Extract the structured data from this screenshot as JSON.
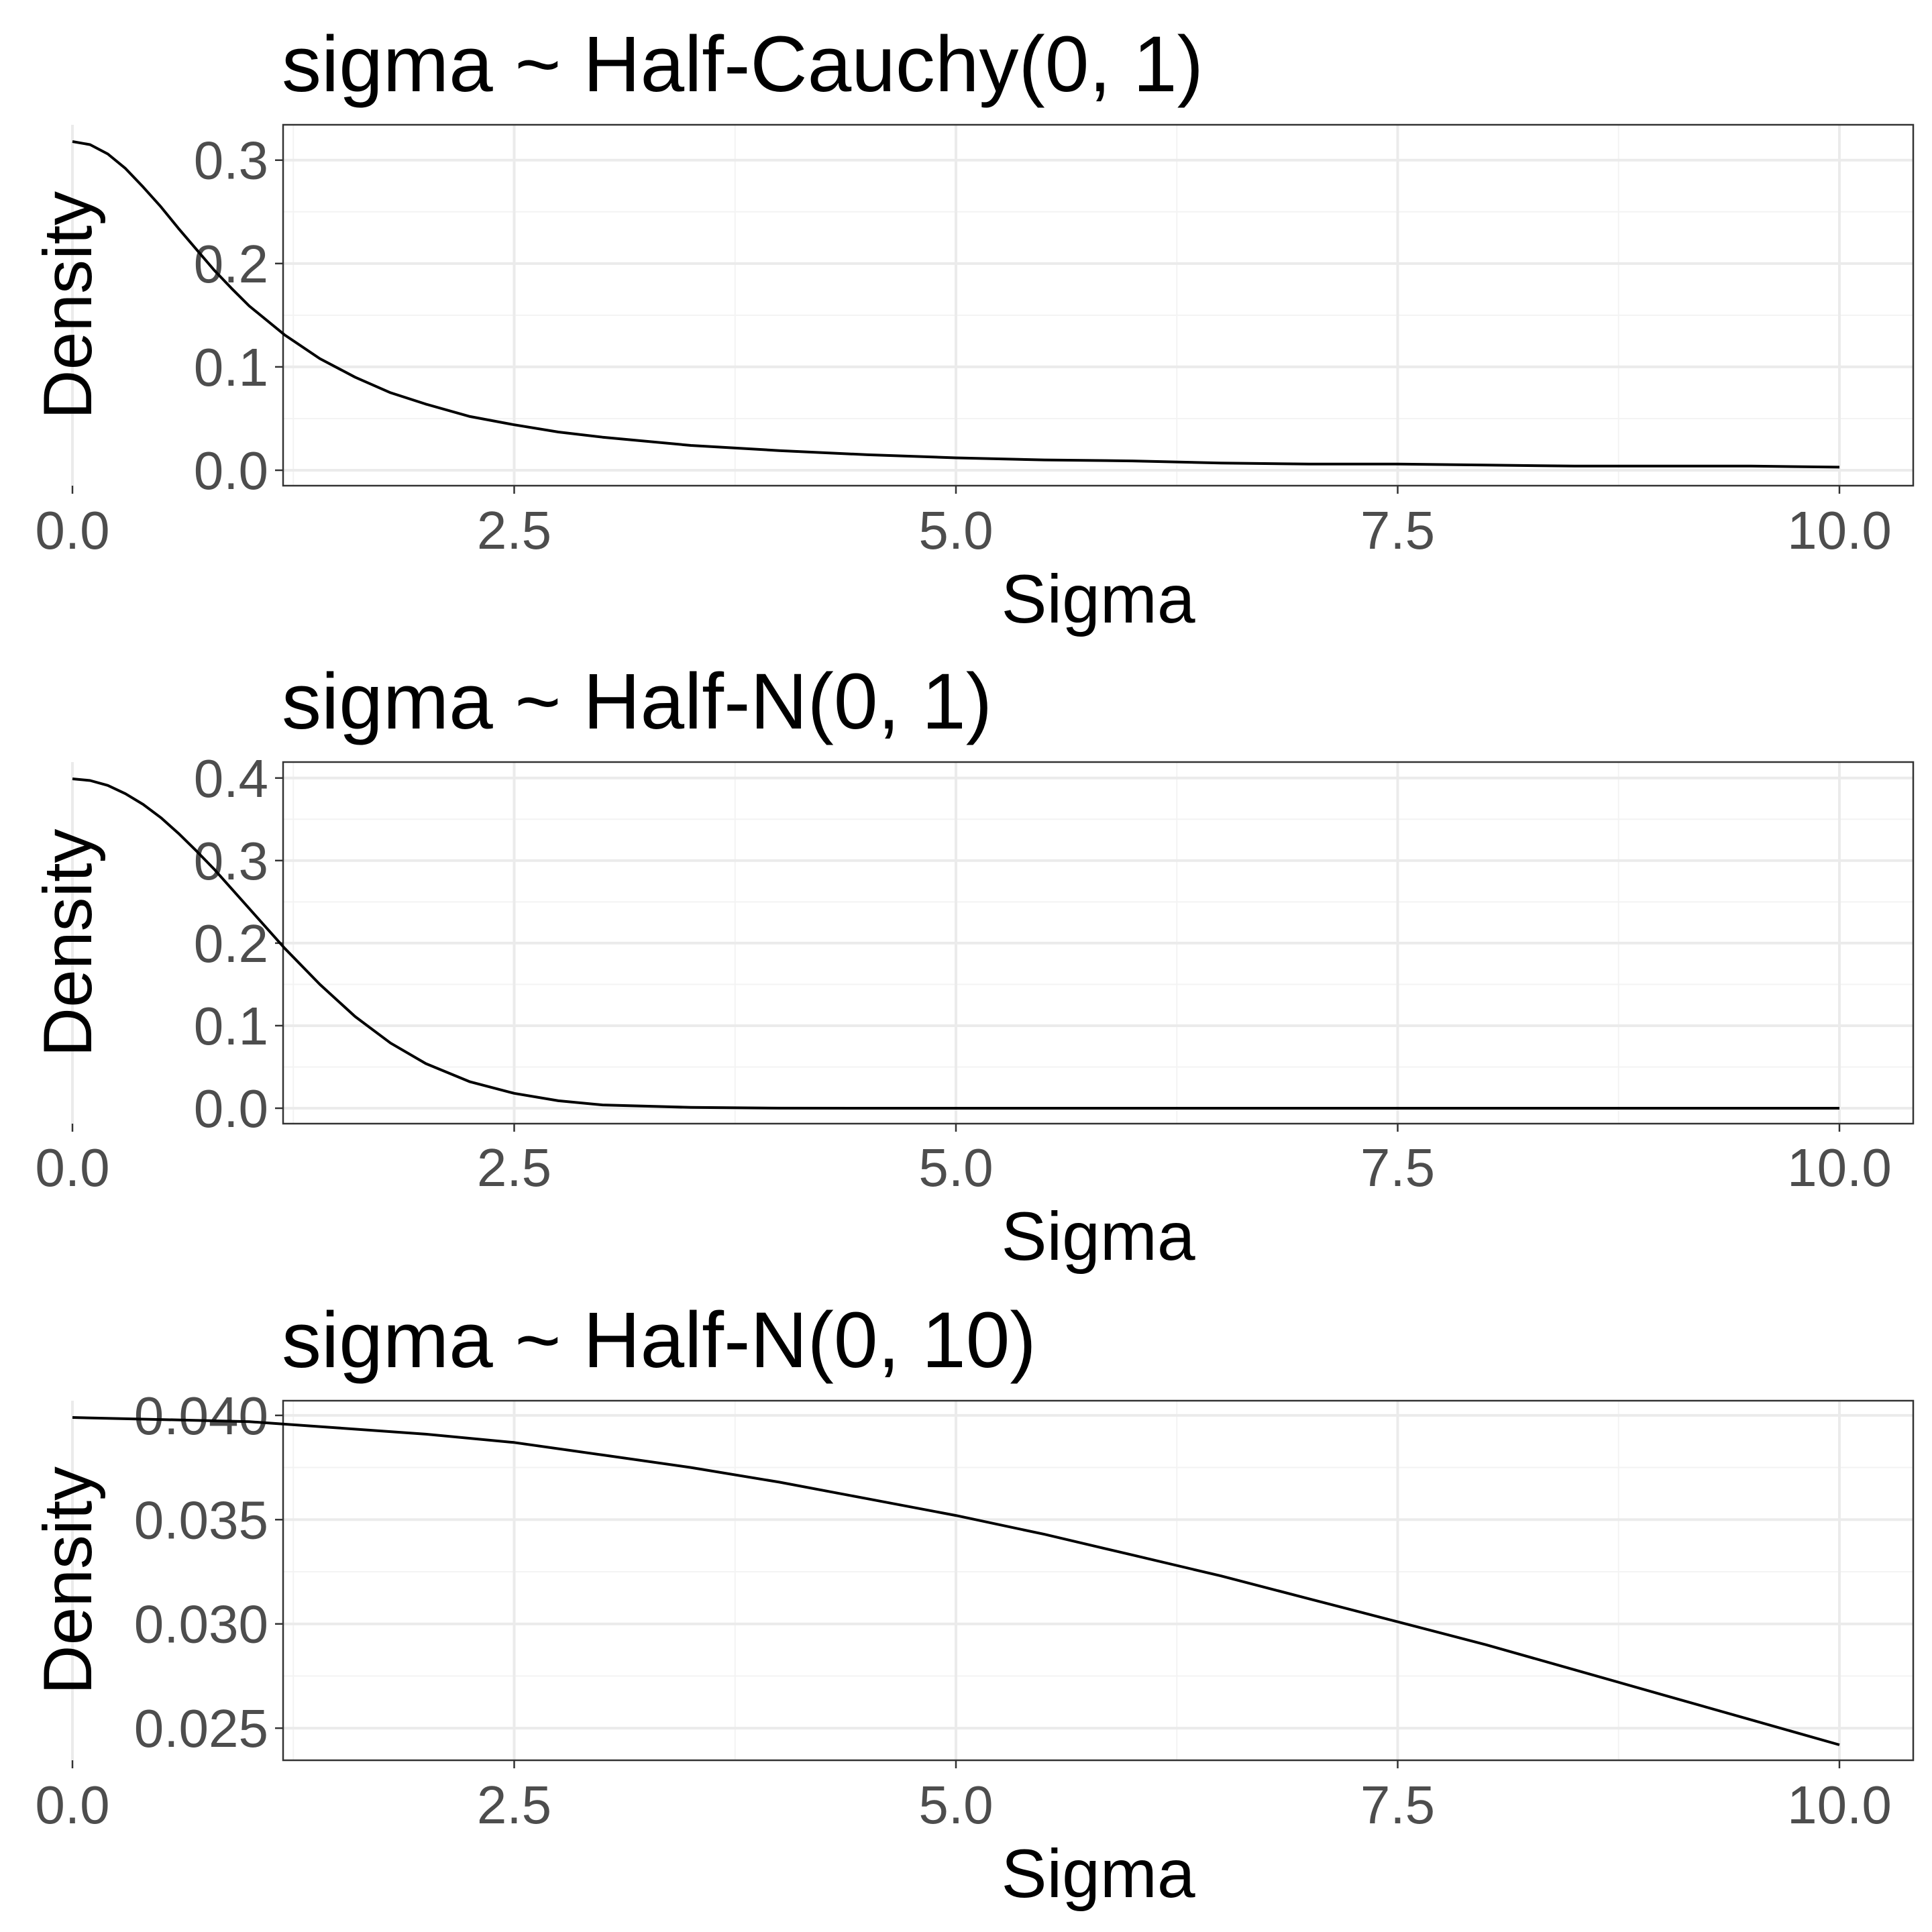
{
  "chart_data": [
    {
      "type": "line",
      "title": "sigma ~ Half-Cauchy(0, 1)",
      "xlabel": "Sigma",
      "ylabel": "Density",
      "xlim": [
        0,
        10
      ],
      "ylim": [
        0,
        0.318
      ],
      "x_ticks": [
        "0.0",
        "2.5",
        "5.0",
        "7.5",
        "10.0"
      ],
      "x_tick_values": [
        0,
        2.5,
        5,
        7.5,
        10
      ],
      "y_ticks": [
        "0.0",
        "0.1",
        "0.2",
        "0.3"
      ],
      "y_tick_values": [
        0,
        0.1,
        0.2,
        0.3
      ],
      "grid": true,
      "x": [
        0,
        0.1,
        0.2,
        0.3,
        0.4,
        0.5,
        0.6,
        0.7,
        0.8,
        0.9,
        1.0,
        1.2,
        1.4,
        1.6,
        1.8,
        2.0,
        2.25,
        2.5,
        2.75,
        3.0,
        3.5,
        4.0,
        4.5,
        5.0,
        5.5,
        6.0,
        6.5,
        7.0,
        7.5,
        8.0,
        8.5,
        9.0,
        9.5,
        10.0
      ],
      "values": [
        0.318,
        0.315,
        0.306,
        0.292,
        0.274,
        0.255,
        0.234,
        0.214,
        0.194,
        0.176,
        0.159,
        0.131,
        0.108,
        0.09,
        0.075,
        0.064,
        0.052,
        0.044,
        0.037,
        0.032,
        0.024,
        0.019,
        0.015,
        0.012,
        0.01,
        0.009,
        0.007,
        0.006,
        0.006,
        0.005,
        0.004,
        0.004,
        0.004,
        0.003
      ]
    },
    {
      "type": "line",
      "title": "sigma ~ Half-N(0, 1)",
      "xlabel": "Sigma",
      "ylabel": "Density",
      "xlim": [
        0,
        10
      ],
      "ylim": [
        0,
        0.399
      ],
      "x_ticks": [
        "0.0",
        "2.5",
        "5.0",
        "7.5",
        "10.0"
      ],
      "x_tick_values": [
        0,
        2.5,
        5,
        7.5,
        10
      ],
      "y_ticks": [
        "0.0",
        "0.1",
        "0.2",
        "0.3",
        "0.4"
      ],
      "y_tick_values": [
        0,
        0.1,
        0.2,
        0.3,
        0.4
      ],
      "grid": true,
      "x": [
        0,
        0.1,
        0.2,
        0.3,
        0.4,
        0.5,
        0.6,
        0.7,
        0.8,
        0.9,
        1.0,
        1.2,
        1.4,
        1.6,
        1.8,
        2.0,
        2.25,
        2.5,
        2.75,
        3.0,
        3.5,
        4.0,
        5.0,
        6.0,
        7.0,
        8.0,
        9.0,
        10.0
      ],
      "values": [
        0.399,
        0.397,
        0.391,
        0.381,
        0.368,
        0.352,
        0.333,
        0.312,
        0.29,
        0.266,
        0.242,
        0.194,
        0.15,
        0.111,
        0.079,
        0.054,
        0.032,
        0.018,
        0.009,
        0.004,
        0.001,
        0.0001,
        0,
        0,
        0,
        0,
        0,
        0
      ]
    },
    {
      "type": "line",
      "title": "sigma ~ Half-N(0, 10)",
      "xlabel": "Sigma",
      "ylabel": "Density",
      "xlim": [
        0,
        10
      ],
      "ylim": [
        0.0242,
        0.0399
      ],
      "x_ticks": [
        "0.0",
        "2.5",
        "5.0",
        "7.5",
        "10.0"
      ],
      "x_tick_values": [
        0,
        2.5,
        5,
        7.5,
        10
      ],
      "y_ticks": [
        "0.025",
        "0.030",
        "0.035",
        "0.040"
      ],
      "y_tick_values": [
        0.025,
        0.03,
        0.035,
        0.04
      ],
      "grid": true,
      "x": [
        0,
        0.5,
        1.0,
        1.5,
        2.0,
        2.5,
        3.0,
        3.5,
        4.0,
        4.5,
        5.0,
        5.5,
        6.0,
        6.5,
        7.0,
        7.5,
        8.0,
        8.5,
        9.0,
        9.5,
        10.0
      ],
      "values": [
        0.0399,
        0.0398,
        0.0397,
        0.0394,
        0.0391,
        0.0387,
        0.0381,
        0.0375,
        0.0368,
        0.036,
        0.0352,
        0.0343,
        0.0333,
        0.0323,
        0.0312,
        0.0301,
        0.029,
        0.0278,
        0.0266,
        0.0254,
        0.0242
      ]
    }
  ]
}
